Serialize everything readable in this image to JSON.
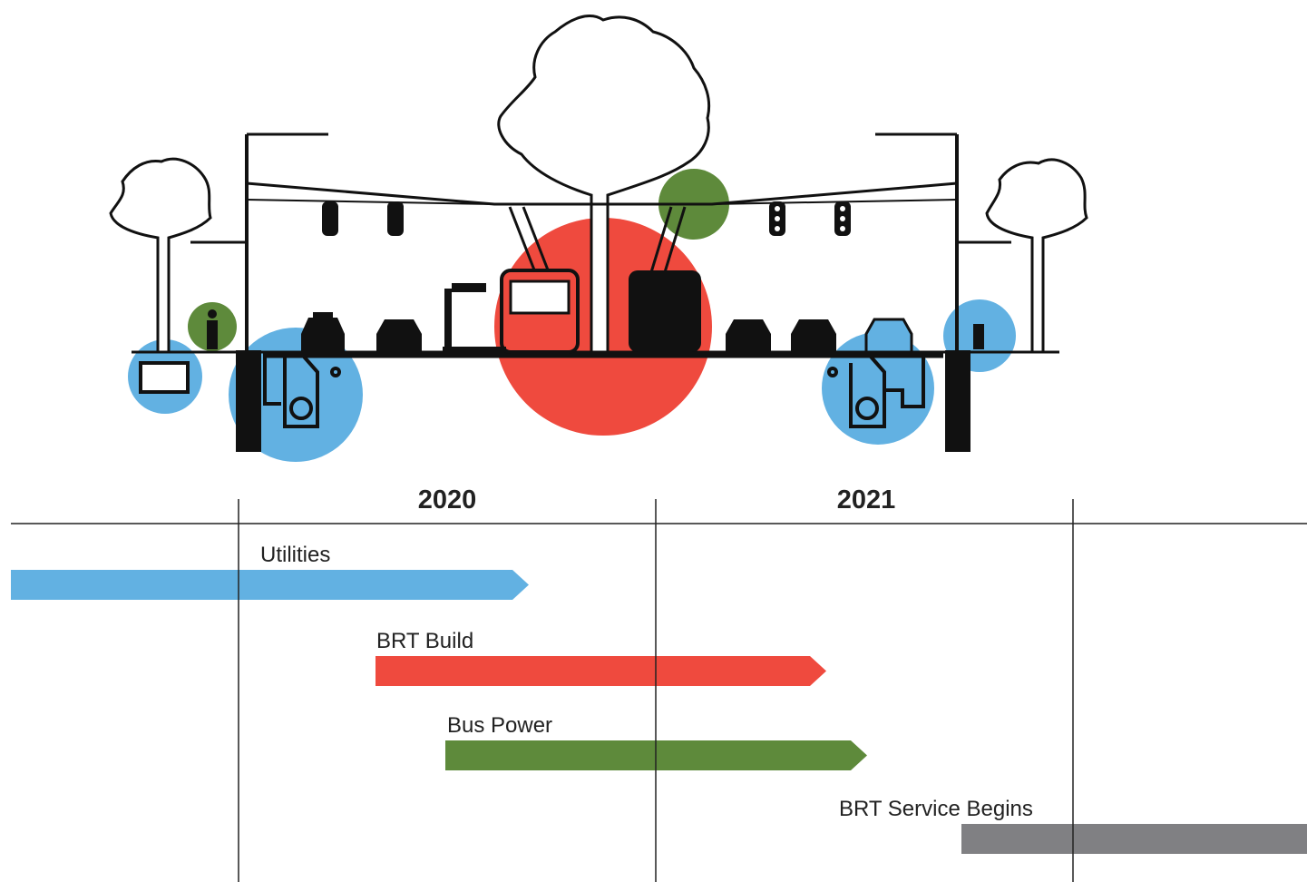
{
  "timeline": {
    "years": [
      "2020",
      "2021"
    ],
    "tasks": [
      {
        "label": "Utilities",
        "color": "#62b1e2"
      },
      {
        "label": "BRT Build",
        "color": "#ef4a3e"
      },
      {
        "label": "Bus Power",
        "color": "#5e8a3b"
      },
      {
        "label": "BRT Service Begins",
        "color": "#808083"
      }
    ]
  }
}
